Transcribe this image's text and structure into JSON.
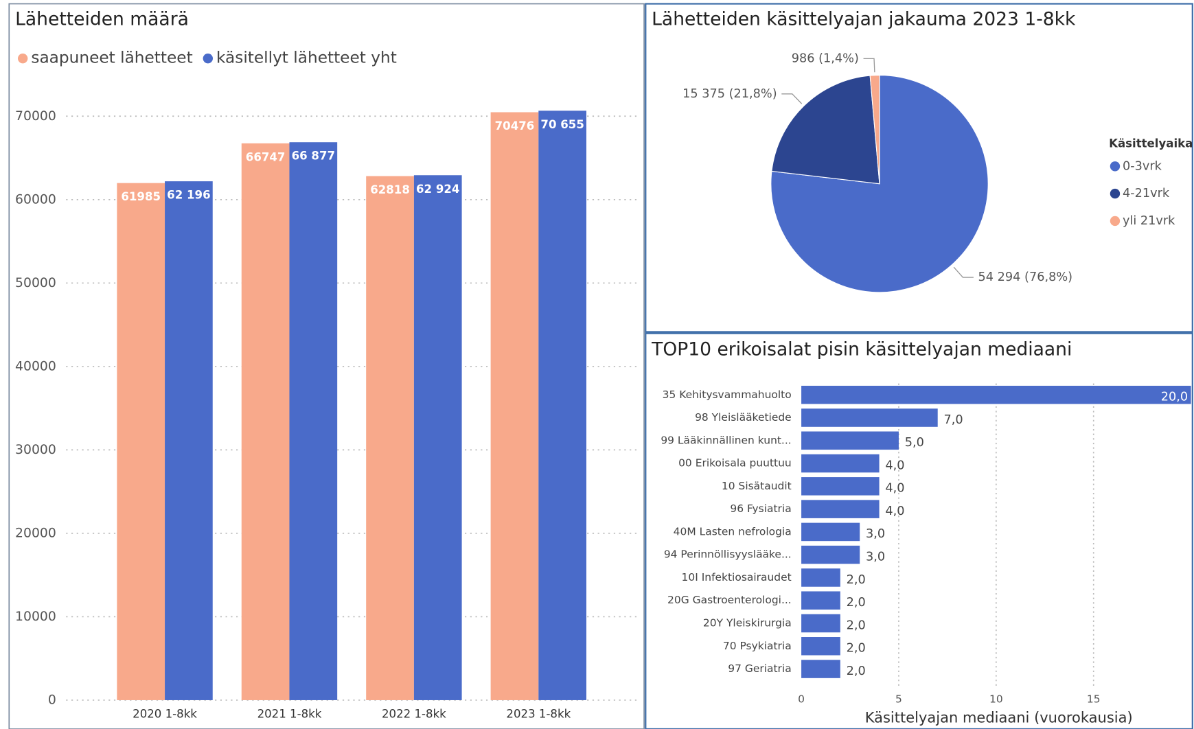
{
  "chart_data": [
    {
      "type": "bar",
      "title": "Lähetteiden määrä",
      "categories": [
        "2020 1-8kk",
        "2021 1-8kk",
        "2022 1-8kk",
        "2023 1-8kk"
      ],
      "series": [
        {
          "name": "saapuneet lähetteet",
          "color": "#f8a98b",
          "values": [
            61985,
            66747,
            62818,
            70476
          ]
        },
        {
          "name": "käsitellyt lähetteet yht",
          "color": "#4a6bc9",
          "values": [
            62196,
            66877,
            62924,
            70655
          ],
          "value_labels": [
            "62 196",
            "66 877",
            "62 924",
            "70 655"
          ]
        }
      ],
      "ylim": [
        0,
        70000
      ],
      "yticks": [
        0,
        10000,
        20000,
        30000,
        40000,
        50000,
        60000,
        70000
      ],
      "grid": true,
      "legend": "top-left"
    },
    {
      "type": "pie",
      "title": "Lähetteiden käsittelyajan jakauma 2023 1-8kk",
      "legend_title": "Käsittelyaika",
      "categories": [
        "0-3vrk",
        "4-21vrk",
        "yli 21vrk"
      ],
      "values": [
        54294,
        15375,
        986
      ],
      "value_labels": [
        "54 294 (76,8%)",
        "15 375 (21,8%)",
        "986 (1,4%)"
      ],
      "colors": [
        "#4a6bc9",
        "#2c4590",
        "#f8a98b"
      ],
      "legend": "right"
    },
    {
      "type": "hbar",
      "title": "TOP10 erikoisalat pisin käsittelyajan mediaani",
      "categories": [
        "35 Kehitysvammahuolto",
        "98 Yleislääketiede",
        "99 Lääkinnällinen kunt...",
        "00 Erikoisala puuttuu",
        "10 Sisätaudit",
        "96 Fysiatria",
        "40M Lasten nefrologia",
        "94 Perinnöllisyyslääke...",
        "10I Infektiosairaudet",
        "20G Gastroenterologi...",
        "20Y Yleiskirurgia",
        "70 Psykiatria",
        "97 Geriatria"
      ],
      "values": [
        20,
        7,
        5,
        4,
        4,
        4,
        3,
        3,
        2,
        2,
        2,
        2,
        2
      ],
      "value_labels": [
        "20,0",
        "7,0",
        "5,0",
        "4,0",
        "4,0",
        "4,0",
        "3,0",
        "3,0",
        "2,0",
        "2,0",
        "2,0",
        "2,0",
        "2,0"
      ],
      "color": "#4a6bc9",
      "xlim": [
        0,
        20
      ],
      "xticks": [
        0,
        5,
        10,
        15
      ],
      "grid": true,
      "x_label": "Käsittelyajan mediaani (vuorokausia)"
    }
  ]
}
